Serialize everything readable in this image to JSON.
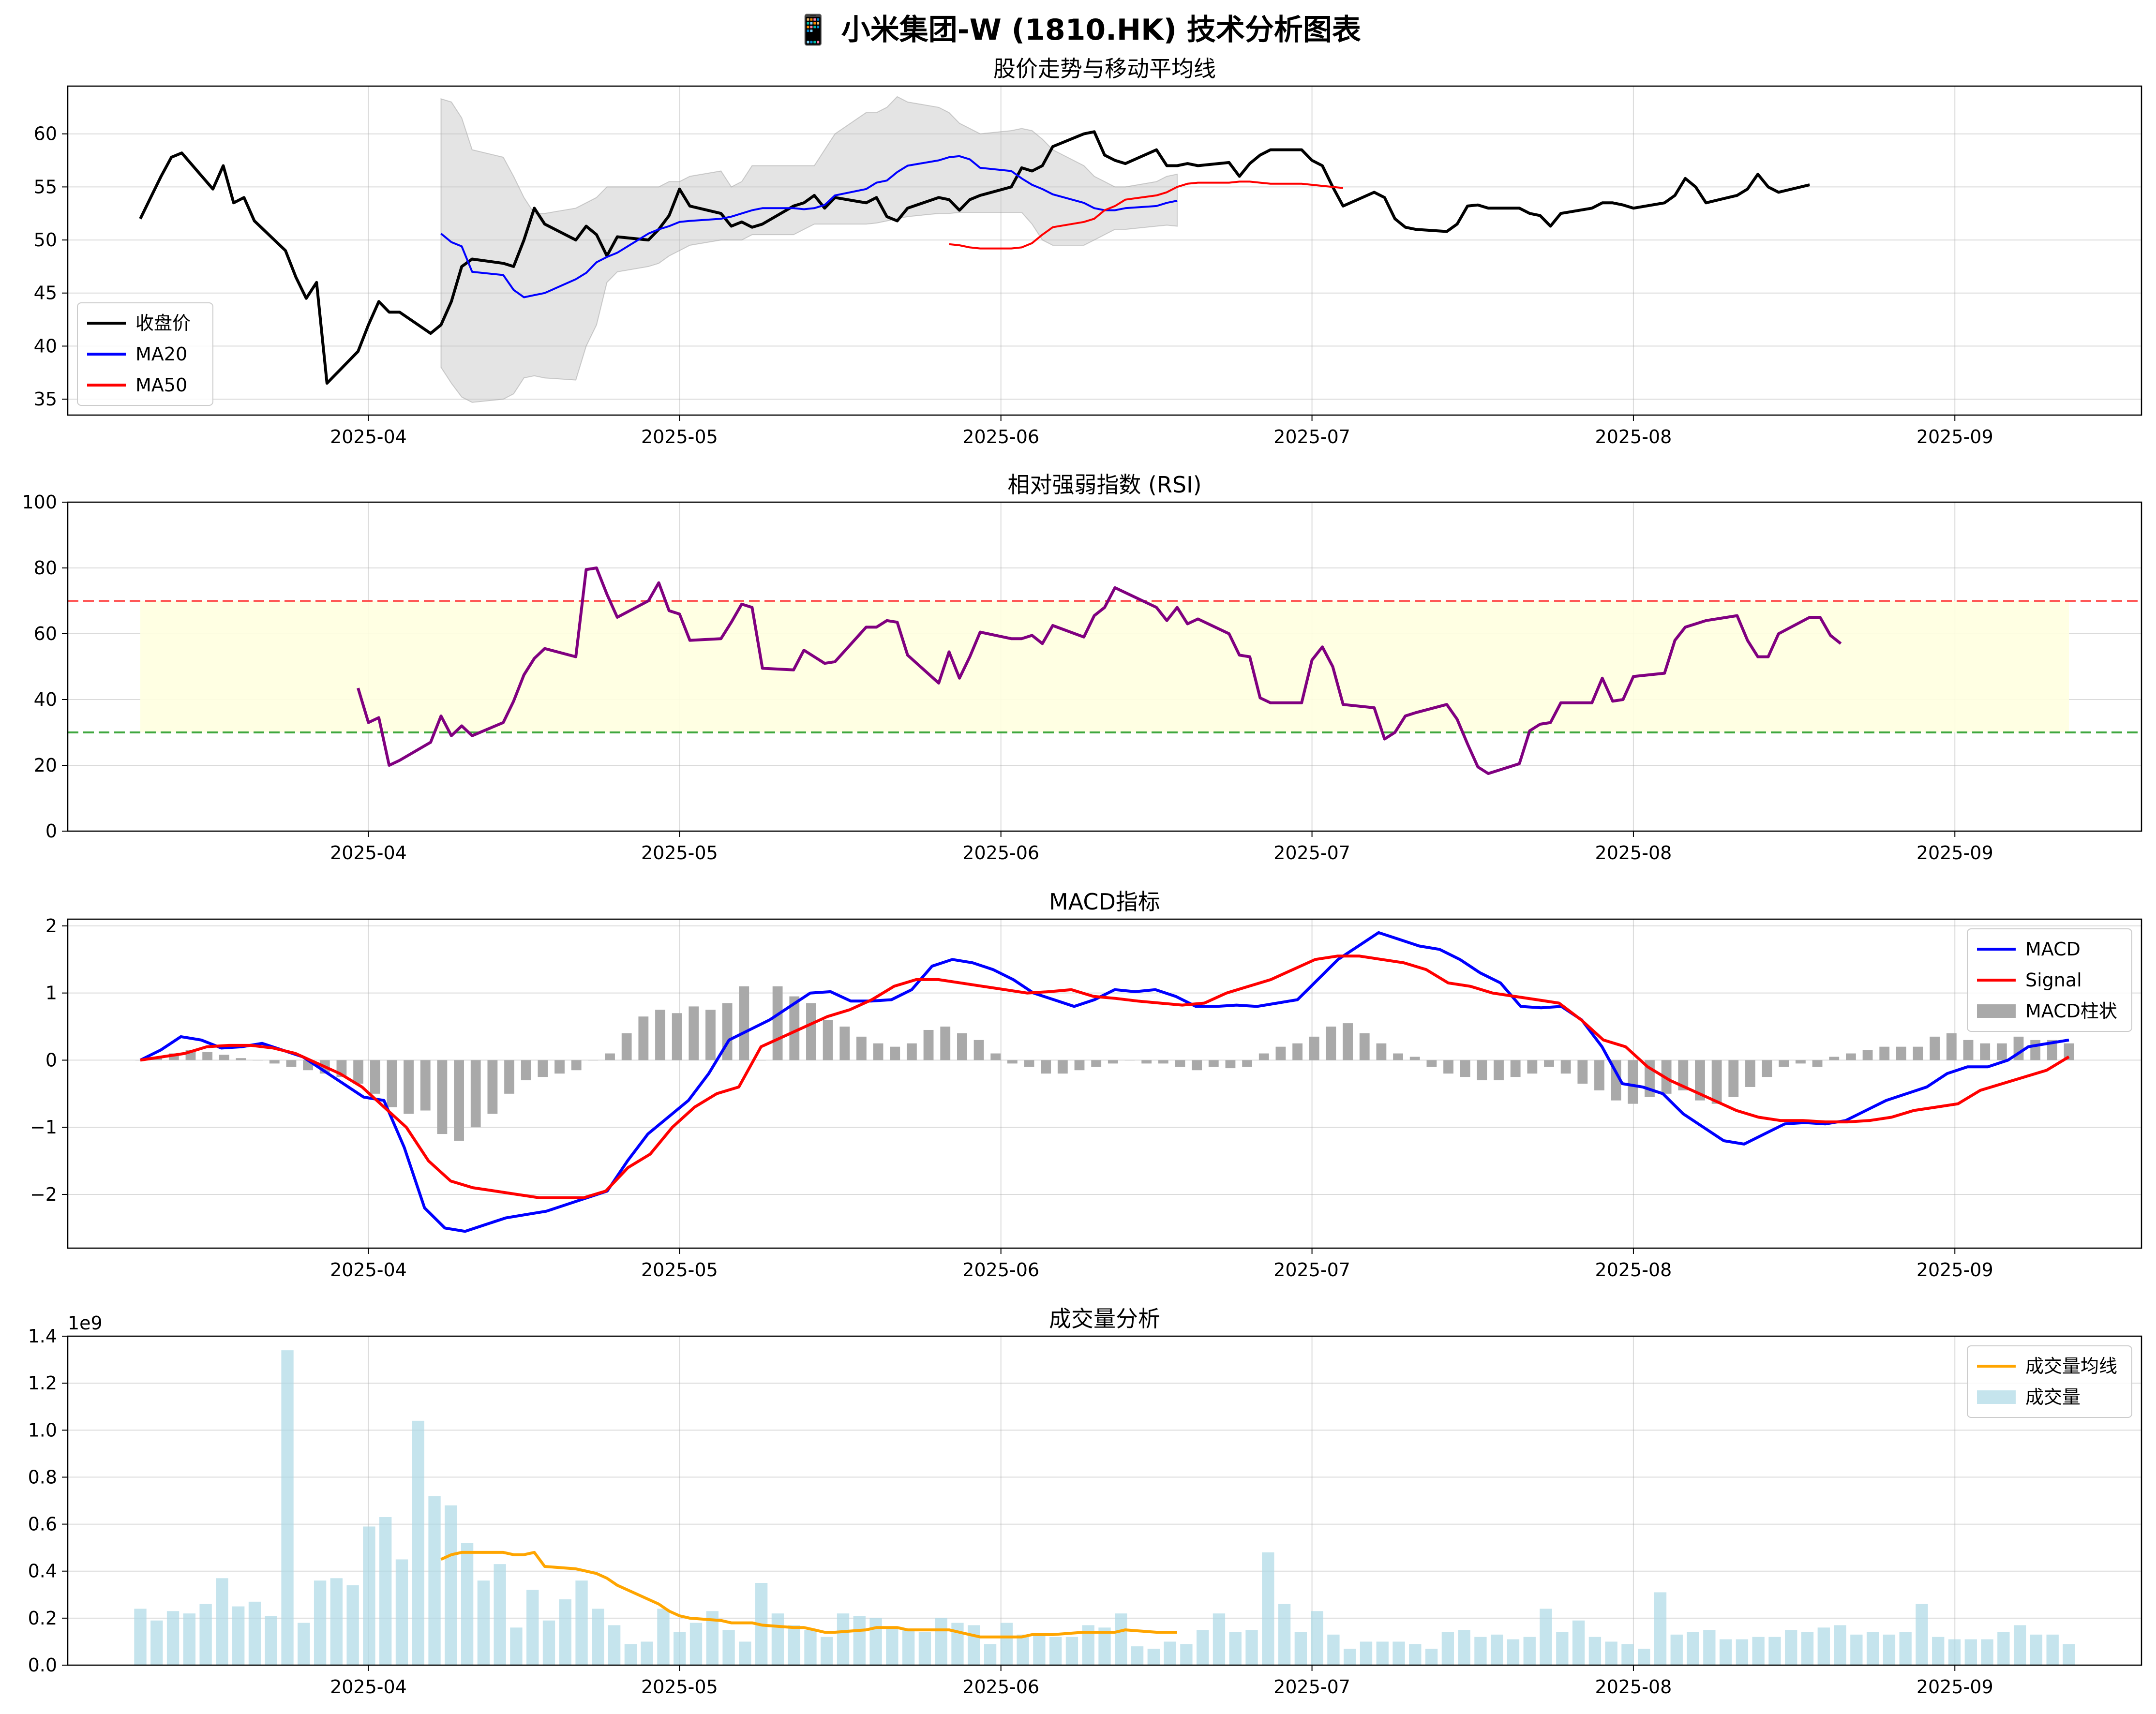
{
  "figure": {
    "title": "📱 小米集团-W (1810.HK) 技术分析图表"
  },
  "chart_data": [
    {
      "type": "line",
      "id": "price",
      "title": "股价走势与移动平均线",
      "x_start": "2025-03-10",
      "x_end": "2025-09-12",
      "xlim": [
        "2025-03-03",
        "2025-09-19"
      ],
      "ylim": [
        33.5,
        64.5
      ],
      "y_ticks": [
        35,
        40,
        45,
        50,
        55,
        60
      ],
      "x_ticks": [
        "2025-04",
        "2025-05",
        "2025-06",
        "2025-07",
        "2025-08",
        "2025-09"
      ],
      "grid": true,
      "legend": "lower-left",
      "series": [
        {
          "name": "收盘价",
          "color": "#000000",
          "start": "2025-03-10",
          "values": [
            52.0,
            54.0,
            56.0,
            57.8,
            58.2,
            54.8,
            57.0,
            53.5,
            54.0,
            51.8,
            49.0,
            46.5,
            44.5,
            46.0,
            36.5,
            39.5,
            42.0,
            44.2,
            43.2,
            43.2,
            41.2,
            42.0,
            44.2,
            47.5,
            48.2,
            47.8,
            47.5,
            50.0,
            53.0,
            51.5,
            50.0,
            51.3,
            50.5,
            48.5,
            50.3,
            50.0,
            51.0,
            52.3,
            54.8,
            53.2,
            52.5,
            51.3,
            51.7,
            51.2,
            51.5,
            53.2,
            53.5,
            54.2,
            53.0,
            54.0,
            53.5,
            54.0,
            52.2,
            51.8,
            53.0,
            54.0,
            53.8,
            52.8,
            53.8,
            54.2,
            55.0,
            56.8,
            56.5,
            57.0,
            58.8,
            60.0,
            60.2,
            58.0,
            57.5,
            57.2,
            58.5,
            57.0,
            57.0,
            57.2,
            57.0,
            57.3,
            56.0,
            57.2,
            58.0,
            58.5,
            58.5,
            57.5,
            57.0,
            55.0,
            53.2,
            54.5,
            54.0,
            52.0,
            51.2,
            51.0,
            50.8,
            51.5,
            53.2,
            53.3,
            53.0,
            53.0,
            52.5,
            52.3,
            51.3,
            52.5,
            53.0,
            53.5,
            53.5,
            53.3,
            53.0,
            53.5,
            54.2,
            55.8,
            55.0,
            53.5,
            54.2,
            54.8,
            56.2,
            55.0,
            54.5,
            55.2
          ]
        },
        {
          "name": "MA20",
          "color": "#0000ff",
          "start": "2025-04-08",
          "values": [
            50.6,
            49.8,
            49.4,
            47.0,
            46.7,
            45.3,
            44.6,
            44.8,
            45.0,
            46.3,
            46.9,
            47.9,
            48.4,
            48.8,
            50.6,
            51.0,
            51.3,
            51.7,
            51.8,
            52.0,
            52.2,
            52.5,
            52.8,
            53.0,
            53.0,
            52.9,
            53.0,
            53.3,
            54.2,
            54.8,
            55.4,
            55.6,
            56.4,
            57.0,
            57.5,
            57.8,
            57.9,
            57.6,
            56.8,
            56.5,
            55.8,
            55.2,
            54.8,
            54.3,
            53.5,
            53.0,
            52.8,
            52.8,
            53.0,
            53.2,
            53.5,
            53.7
          ]
        },
        {
          "name": "MA50",
          "color": "#ff0000",
          "start": "2025-05-27",
          "values": [
            49.6,
            49.5,
            49.3,
            49.2,
            49.2,
            49.3,
            49.7,
            50.5,
            51.2,
            51.7,
            52.0,
            52.8,
            53.2,
            53.8,
            54.2,
            54.5,
            55.0,
            55.3,
            55.4,
            55.4,
            55.5,
            55.5,
            55.4,
            55.3,
            55.3,
            55.2,
            55.1,
            55.0,
            54.9
          ]
        },
        {
          "name": "布林带上轨",
          "color": "#d3d3d3",
          "start": "2025-04-08",
          "values": [
            63.3,
            63.0,
            61.5,
            58.5,
            57.8,
            56.0,
            54.0,
            52.5,
            52.5,
            53.0,
            53.5,
            54.0,
            55.0,
            55.0,
            55.0,
            55.0,
            55.5,
            55.5,
            56.0,
            56.5,
            55.0,
            55.5,
            57.0,
            57.0,
            57.0,
            57.0,
            57.0,
            58.5,
            60.0,
            62.0,
            62.0,
            62.5,
            63.5,
            63.0,
            62.5,
            62.0,
            61.0,
            60.5,
            60.0,
            60.3,
            60.5,
            60.3,
            59.5,
            58.5,
            57.0,
            56.0,
            55.5,
            55.0,
            55.0,
            55.5,
            56.0,
            56.2
          ]
        },
        {
          "name": "布林带下轨",
          "color": "#d3d3d3",
          "start": "2025-04-08",
          "values": [
            38.0,
            36.5,
            35.2,
            34.7,
            35.0,
            35.5,
            37.0,
            37.2,
            37.0,
            36.8,
            40.0,
            42.0,
            46.0,
            47.0,
            47.5,
            47.8,
            48.5,
            49.0,
            49.5,
            50.0,
            50.0,
            50.0,
            50.5,
            50.5,
            50.5,
            51.0,
            51.5,
            51.5,
            51.5,
            51.5,
            51.6,
            51.8,
            52.0,
            52.2,
            52.5,
            52.5,
            52.6,
            52.6,
            52.6,
            52.6,
            52.6,
            51.5,
            50.0,
            49.5,
            49.5,
            50.0,
            50.5,
            51.0,
            51.0,
            51.3,
            51.4,
            51.3
          ]
        }
      ]
    },
    {
      "type": "line",
      "id": "rsi",
      "title": "相对强弱指数 (RSI)",
      "xlim": [
        "2025-03-03",
        "2025-09-19"
      ],
      "ylim": [
        0,
        100
      ],
      "y_ticks": [
        0,
        20,
        40,
        60,
        80,
        100
      ],
      "x_ticks": [
        "2025-04",
        "2025-05",
        "2025-06",
        "2025-07",
        "2025-08",
        "2025-09"
      ],
      "grid": true,
      "overbought": 70,
      "oversold": 30,
      "band": [
        30,
        70
      ],
      "band_range": [
        "2025-03-10",
        "2025-09-12"
      ],
      "series": [
        {
          "name": "RSI",
          "color": "#800080",
          "start": "2025-03-31",
          "values": [
            43.5,
            33.0,
            34.5,
            20.0,
            21.5,
            27.0,
            35.0,
            29.0,
            32.0,
            29.0,
            33.0,
            39.5,
            47.5,
            52.5,
            55.5,
            53.0,
            79.5,
            80.0,
            72.0,
            65.0,
            70.0,
            75.5,
            67.0,
            66.0,
            58.0,
            58.5,
            63.5,
            69.0,
            68.0,
            49.5,
            49.0,
            55.0,
            53.0,
            51.0,
            51.5,
            62.0,
            62.0,
            64.0,
            63.5,
            53.5,
            45.0,
            54.5,
            46.5,
            53.0,
            60.5,
            58.5,
            58.5,
            59.5,
            57.0,
            62.5,
            59.0,
            65.5,
            68.0,
            74.0,
            72.5,
            68.0,
            64.0,
            68.0,
            63.0,
            64.5,
            60.0,
            53.5,
            53.0,
            40.5,
            39.0,
            39.0,
            52.0,
            56.0,
            50.0,
            38.5,
            37.5,
            28.0,
            30.0,
            35.0,
            36.0,
            38.5,
            34.0,
            26.5,
            19.5,
            17.5,
            20.5,
            30.5,
            32.5,
            33.0,
            39.0,
            39.0,
            46.5,
            39.5,
            40.0,
            47.0,
            48.0,
            58.0,
            62.0,
            63.0,
            64.0,
            65.5,
            58.0,
            53.0,
            53.0,
            60.0,
            65.0,
            65.0,
            59.5,
            57.0
          ]
        }
      ]
    },
    {
      "type": "line",
      "id": "macd",
      "title": "MACD指标",
      "xlim": [
        "2025-03-03",
        "2025-09-19"
      ],
      "ylim": [
        -2.8,
        2.1
      ],
      "y_ticks": [
        -2,
        -1,
        0,
        1,
        2
      ],
      "x_ticks": [
        "2025-04",
        "2025-05",
        "2025-06",
        "2025-07",
        "2025-08",
        "2025-09"
      ],
      "grid": true,
      "legend": "upper-right",
      "start": "2025-03-10",
      "series": [
        {
          "name": "MACD",
          "color": "#0000ff",
          "values": [
            0.0,
            0.15,
            0.35,
            0.3,
            0.18,
            0.2,
            0.25,
            0.15,
            0.05,
            -0.15,
            -0.35,
            -0.55,
            -0.6,
            -1.3,
            -2.2,
            -2.5,
            -2.55,
            -2.45,
            -2.35,
            -2.3,
            -2.25,
            -2.15,
            -2.05,
            -1.95,
            -1.5,
            -1.1,
            -0.85,
            -0.6,
            -0.2,
            0.3,
            0.45,
            0.6,
            0.8,
            1.0,
            1.02,
            0.88,
            0.88,
            0.9,
            1.05,
            1.4,
            1.5,
            1.45,
            1.35,
            1.2,
            1.0,
            0.9,
            0.8,
            0.9,
            1.05,
            1.02,
            1.05,
            0.95,
            0.8,
            0.8,
            0.82,
            0.8,
            0.85,
            0.9,
            1.2,
            1.5,
            1.7,
            1.9,
            1.8,
            1.7,
            1.65,
            1.5,
            1.3,
            1.15,
            0.8,
            0.78,
            0.8,
            0.6,
            0.2,
            -0.35,
            -0.4,
            -0.5,
            -0.8,
            -1.0,
            -1.2,
            -1.25,
            -1.1,
            -0.95,
            -0.93,
            -0.95,
            -0.9,
            -0.75,
            -0.6,
            -0.5,
            -0.4,
            -0.2,
            -0.1,
            -0.1,
            0.0,
            0.2,
            0.25,
            0.3
          ]
        },
        {
          "name": "Signal",
          "color": "#ff0000",
          "values": [
            0.0,
            0.05,
            0.1,
            0.2,
            0.22,
            0.22,
            0.18,
            0.1,
            -0.05,
            -0.2,
            -0.4,
            -0.7,
            -1.0,
            -1.5,
            -1.8,
            -1.9,
            -1.95,
            -2.0,
            -2.05,
            -2.05,
            -2.05,
            -1.95,
            -1.6,
            -1.4,
            -1.0,
            -0.7,
            -0.5,
            -0.4,
            0.2,
            0.35,
            0.5,
            0.65,
            0.75,
            0.9,
            1.1,
            1.2,
            1.2,
            1.15,
            1.1,
            1.05,
            1.0,
            1.02,
            1.05,
            0.95,
            0.92,
            0.88,
            0.85,
            0.82,
            0.85,
            1.0,
            1.1,
            1.2,
            1.35,
            1.5,
            1.55,
            1.55,
            1.5,
            1.45,
            1.35,
            1.15,
            1.1,
            1.0,
            0.95,
            0.9,
            0.85,
            0.6,
            0.3,
            0.2,
            -0.1,
            -0.3,
            -0.45,
            -0.6,
            -0.75,
            -0.85,
            -0.9,
            -0.9,
            -0.92,
            -0.92,
            -0.9,
            -0.85,
            -0.75,
            -0.7,
            -0.65,
            -0.45,
            -0.35,
            -0.25,
            -0.15,
            0.05
          ]
        },
        {
          "name": "MACD柱状",
          "color": "#a9a9a9",
          "kind": "bar",
          "values": [
            0.0,
            0.05,
            0.1,
            0.15,
            0.12,
            0.08,
            0.03,
            0.0,
            -0.05,
            -0.1,
            -0.15,
            -0.2,
            -0.25,
            -0.35,
            -0.5,
            -0.7,
            -0.8,
            -0.75,
            -1.1,
            -1.2,
            -1.0,
            -0.8,
            -0.5,
            -0.3,
            -0.25,
            -0.2,
            -0.15,
            0.0,
            0.1,
            0.4,
            0.65,
            0.75,
            0.7,
            0.8,
            0.75,
            0.85,
            1.1,
            0.0,
            1.1,
            0.95,
            0.85,
            0.6,
            0.5,
            0.35,
            0.25,
            0.2,
            0.25,
            0.45,
            0.5,
            0.4,
            0.3,
            0.1,
            -0.05,
            -0.1,
            -0.2,
            -0.2,
            -0.15,
            -0.1,
            -0.05,
            0.0,
            -0.05,
            -0.05,
            -0.1,
            -0.15,
            -0.1,
            -0.12,
            -0.1,
            0.1,
            0.2,
            0.25,
            0.35,
            0.5,
            0.55,
            0.4,
            0.25,
            0.1,
            0.05,
            -0.1,
            -0.2,
            -0.25,
            -0.3,
            -0.3,
            -0.25,
            -0.2,
            -0.1,
            -0.2,
            -0.35,
            -0.45,
            -0.6,
            -0.65,
            -0.55,
            -0.5,
            -0.45,
            -0.6,
            -0.65,
            -0.55,
            -0.4,
            -0.25,
            -0.1,
            -0.05,
            -0.1,
            0.05,
            0.1,
            0.15,
            0.2,
            0.2,
            0.2,
            0.35,
            0.4,
            0.3,
            0.25,
            0.25,
            0.35,
            0.3,
            0.3,
            0.25
          ]
        }
      ]
    },
    {
      "type": "bar",
      "id": "volume",
      "title": "成交量分析",
      "xlim": [
        "2025-03-03",
        "2025-09-19"
      ],
      "ylim": [
        0,
        1.4
      ],
      "y_ticks": [
        0.0,
        0.2,
        0.4,
        0.6,
        0.8,
        1.0,
        1.2,
        1.4
      ],
      "y_scale_label": "1e9",
      "x_ticks": [
        "2025-04",
        "2025-05",
        "2025-06",
        "2025-07",
        "2025-08",
        "2025-09"
      ],
      "grid": true,
      "legend": "upper-right",
      "series": [
        {
          "name": "成交量",
          "color": "#add8e6",
          "kind": "bar",
          "start": "2025-03-10",
          "values": [
            0.24,
            0.19,
            0.23,
            0.22,
            0.26,
            0.37,
            0.25,
            0.27,
            0.21,
            1.34,
            0.18,
            0.36,
            0.37,
            0.34,
            0.59,
            0.63,
            0.45,
            1.04,
            0.72,
            0.68,
            0.52,
            0.36,
            0.43,
            0.16,
            0.32,
            0.19,
            0.28,
            0.36,
            0.24,
            0.17,
            0.09,
            0.1,
            0.24,
            0.14,
            0.18,
            0.23,
            0.15,
            0.1,
            0.35,
            0.22,
            0.17,
            0.15,
            0.12,
            0.22,
            0.21,
            0.2,
            0.16,
            0.15,
            0.14,
            0.2,
            0.18,
            0.17,
            0.09,
            0.18,
            0.13,
            0.13,
            0.12,
            0.12,
            0.17,
            0.16,
            0.22,
            0.08,
            0.07,
            0.1,
            0.09,
            0.15,
            0.22,
            0.14,
            0.15,
            0.48,
            0.26,
            0.14,
            0.23,
            0.13,
            0.07,
            0.1,
            0.1,
            0.1,
            0.09,
            0.07,
            0.14,
            0.15,
            0.12,
            0.13,
            0.11,
            0.12,
            0.24,
            0.14,
            0.19,
            0.12,
            0.1,
            0.09,
            0.07,
            0.31,
            0.13,
            0.14,
            0.15,
            0.11,
            0.11,
            0.12,
            0.12,
            0.15,
            0.14,
            0.16,
            0.17,
            0.13,
            0.14,
            0.13,
            0.14,
            0.26,
            0.12,
            0.11,
            0.11,
            0.11,
            0.14,
            0.17,
            0.13,
            0.13,
            0.09
          ]
        },
        {
          "name": "成交量均线",
          "color": "#ffa500",
          "kind": "line",
          "start": "2025-04-08",
          "values": [
            0.45,
            0.47,
            0.48,
            0.48,
            0.48,
            0.47,
            0.47,
            0.48,
            0.42,
            0.41,
            0.4,
            0.39,
            0.37,
            0.34,
            0.28,
            0.26,
            0.23,
            0.21,
            0.2,
            0.19,
            0.18,
            0.18,
            0.18,
            0.17,
            0.16,
            0.16,
            0.15,
            0.14,
            0.14,
            0.15,
            0.16,
            0.16,
            0.16,
            0.15,
            0.15,
            0.15,
            0.14,
            0.13,
            0.12,
            0.12,
            0.12,
            0.13,
            0.13,
            0.13,
            0.14,
            0.14,
            0.14,
            0.14,
            0.15,
            0.14,
            0.14,
            0.14
          ]
        }
      ]
    }
  ]
}
